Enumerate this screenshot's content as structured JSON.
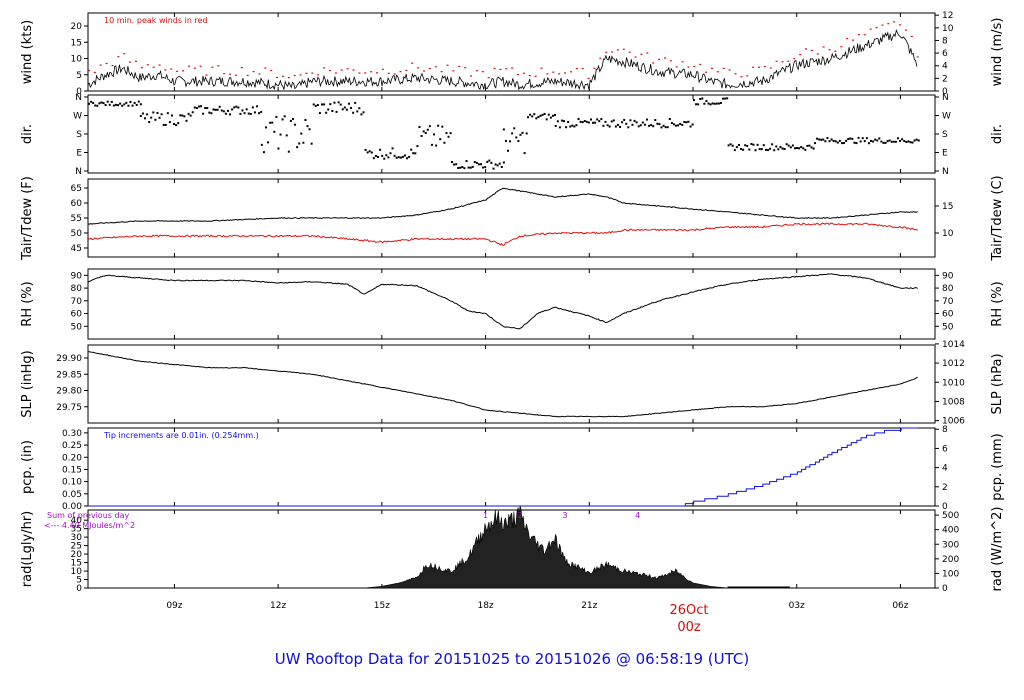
{
  "title": "UW Rooftop Data for 20151025  to  20151026 @ 06:58:19  (UTC)",
  "date_marker": {
    "day": "26Oct",
    "hour": "00z"
  },
  "x_ticks": [
    "09z",
    "12z",
    "15z",
    "18z",
    "21z",
    "03z",
    "06z"
  ],
  "colors": {
    "title": "#1010d0",
    "peak": "#d01010",
    "dew": "#e01010",
    "pcp": "#1010e0",
    "rad_note": "#a010c0"
  },
  "chart_data": [
    {
      "type": "line",
      "id": "wind",
      "ylabel_left": "wind (kts)",
      "ylabel_right": "wind (m/s)",
      "ylim": [
        0,
        24
      ],
      "left_ticks": [
        "0",
        "5",
        "10",
        "15",
        "20"
      ],
      "right_ticks": [
        "0",
        "2",
        "4",
        "6",
        "8",
        "10",
        "12"
      ],
      "annotation": "10 min. peak winds in red",
      "x_hours": [
        6.5,
        7,
        7.5,
        8,
        8.5,
        9,
        10,
        11,
        12,
        12.5,
        13,
        14,
        15,
        16,
        17,
        18,
        18.5,
        19,
        20,
        21,
        21.5,
        22,
        23,
        24,
        24.5,
        25,
        26,
        27,
        28,
        28.5,
        29,
        29.5,
        30,
        30.5
      ],
      "series": [
        {
          "name": "wind",
          "values": [
            2,
            5,
            7,
            4,
            5,
            3,
            3,
            3,
            2,
            1,
            3,
            3,
            3,
            4,
            3,
            2,
            3,
            2,
            3,
            2,
            10,
            9,
            6,
            5,
            3,
            2,
            3,
            8,
            10,
            12,
            14,
            16,
            18,
            8
          ]
        }
      ]
    },
    {
      "type": "scatter",
      "id": "dir",
      "ylabel_left": "dir.",
      "ylabel_right": "dir.",
      "ylim": [
        0,
        360
      ],
      "left_ticks": [
        "N",
        "E",
        "S",
        "W",
        "N"
      ],
      "right_ticks": [
        "N",
        "E",
        "S",
        "W",
        "N"
      ]
    },
    {
      "type": "line",
      "id": "temp",
      "ylabel_left": "Tair/Tdew (F)",
      "ylabel_right": "Tair/Tdew (C)",
      "ylim": [
        42,
        68
      ],
      "left_ticks": [
        "45",
        "50",
        "55",
        "60",
        "65"
      ],
      "right_ticks": [
        "10",
        "15"
      ],
      "x_hours": [
        6.5,
        8,
        10,
        12,
        13,
        14,
        15,
        16,
        17,
        18,
        18.5,
        19,
        20,
        21,
        21.5,
        22,
        23,
        24,
        25,
        26,
        27,
        28,
        29,
        30,
        30.5
      ],
      "series": [
        {
          "name": "Tair",
          "values": [
            53,
            54,
            54,
            55,
            55,
            55,
            55,
            56,
            58,
            61,
            65,
            64,
            62,
            63,
            62,
            60,
            59,
            58,
            57,
            56,
            55,
            55,
            56,
            57,
            57
          ]
        },
        {
          "name": "Tdew",
          "values": [
            48,
            49,
            49,
            49,
            49,
            48,
            47,
            48,
            48,
            48,
            46,
            49,
            50,
            50,
            50,
            51,
            51,
            51,
            52,
            52,
            53,
            53,
            53,
            52,
            51
          ]
        }
      ]
    },
    {
      "type": "line",
      "id": "rh",
      "ylabel_left": "RH (%)",
      "ylabel_right": "RH (%)",
      "ylim": [
        40,
        95
      ],
      "left_ticks": [
        "50",
        "60",
        "70",
        "80",
        "90"
      ],
      "right_ticks": [
        "50",
        "60",
        "70",
        "80",
        "90"
      ],
      "x_hours": [
        6.5,
        7,
        8,
        9,
        10,
        11,
        12,
        13,
        14,
        14.5,
        15,
        16,
        17,
        17.5,
        18,
        18.5,
        19,
        19.5,
        20,
        21,
        21.5,
        22,
        23,
        24,
        25,
        26,
        27,
        28,
        29,
        30,
        30.5
      ],
      "series": [
        {
          "name": "RH",
          "values": [
            85,
            90,
            88,
            86,
            86,
            86,
            84,
            85,
            83,
            75,
            83,
            82,
            70,
            62,
            60,
            50,
            48,
            60,
            65,
            58,
            53,
            60,
            70,
            77,
            83,
            87,
            89,
            91,
            88,
            80,
            80
          ]
        }
      ]
    },
    {
      "type": "line",
      "id": "slp",
      "ylabel_left": "SLP (inHg)",
      "ylabel_right": "SLP (hPa)",
      "ylim": [
        29.7,
        29.94
      ],
      "left_ticks": [
        "29.75",
        "29.80",
        "29.85",
        "29.90"
      ],
      "right_ticks": [
        "1006",
        "1008",
        "1010",
        "1012",
        "1014"
      ],
      "x_hours": [
        6.5,
        7,
        8,
        9,
        10,
        11,
        12,
        13,
        14,
        15,
        16,
        17,
        18,
        19,
        20,
        21,
        22,
        23,
        24,
        25,
        26,
        27,
        28,
        29,
        30,
        30.5
      ],
      "series": [
        {
          "name": "SLP",
          "values": [
            29.92,
            29.91,
            29.89,
            29.88,
            29.87,
            29.87,
            29.86,
            29.85,
            29.83,
            29.81,
            29.79,
            29.77,
            29.74,
            29.73,
            29.72,
            29.72,
            29.72,
            29.73,
            29.74,
            29.75,
            29.75,
            29.76,
            29.78,
            29.8,
            29.82,
            29.84
          ]
        }
      ]
    },
    {
      "type": "line",
      "id": "pcp",
      "ylabel_left": "pcp. (in)",
      "ylabel_right": "pcp. (mm)",
      "ylim": [
        0,
        0.32
      ],
      "left_ticks": [
        "0.00",
        "0.05",
        "0.10",
        "0.15",
        "0.20",
        "0.25",
        "0.30"
      ],
      "right_ticks": [
        "0",
        "2",
        "4",
        "6",
        "8"
      ],
      "annotation": "Tip increments are 0.01in. (0.254mm.)",
      "x_hours": [
        6.5,
        23.5,
        24,
        25,
        26,
        27,
        28,
        29,
        29.5,
        30,
        30.5
      ],
      "series": [
        {
          "name": "pcp",
          "values": [
            0,
            0,
            0.02,
            0.05,
            0.09,
            0.14,
            0.22,
            0.29,
            0.31,
            0.32,
            0.32
          ]
        }
      ]
    },
    {
      "type": "area",
      "id": "rad",
      "ylabel_left": "rad(Lgly/hr)",
      "ylabel_right": "rad (W/m^2)",
      "ylim": [
        0,
        46
      ],
      "left_ticks": [
        "0",
        "5",
        "10",
        "15",
        "20",
        "25",
        "30",
        "35",
        "40"
      ],
      "right_ticks": [
        "0",
        "100",
        "200",
        "300",
        "400",
        "500"
      ],
      "annotation_line1": "Sum of previous day",
      "annotation_line2": "<--- 4.40 MJoules/m^2",
      "peak_labels": [
        "1",
        "2",
        "3",
        "4"
      ],
      "x_hours": [
        14.5,
        15,
        15.5,
        16,
        16.3,
        17,
        17.5,
        18,
        18.3,
        18.6,
        19,
        19.3,
        19.7,
        20,
        20.3,
        21,
        21.5,
        22,
        22.5,
        23,
        23.5,
        24,
        24.5,
        25
      ],
      "series": [
        {
          "name": "rad",
          "values": [
            0,
            1,
            3,
            6,
            14,
            10,
            18,
            36,
            41,
            38,
            43,
            30,
            22,
            30,
            16,
            9,
            14,
            10,
            8,
            6,
            10,
            3,
            1,
            0
          ]
        }
      ]
    }
  ]
}
